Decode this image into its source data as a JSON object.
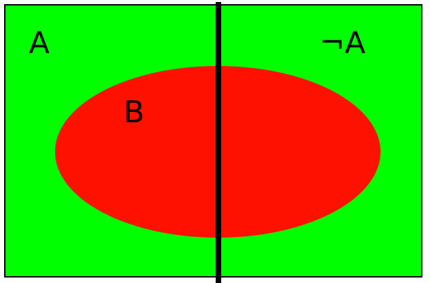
{
  "diagram": {
    "labels": {
      "a": "A",
      "not_a": "¬A",
      "b": "B"
    },
    "colors": {
      "background": "#ffffff",
      "universe_fill": "#00ff00",
      "set_b_fill": "#ff1100",
      "border": "#000000",
      "divider": "#000000"
    }
  }
}
